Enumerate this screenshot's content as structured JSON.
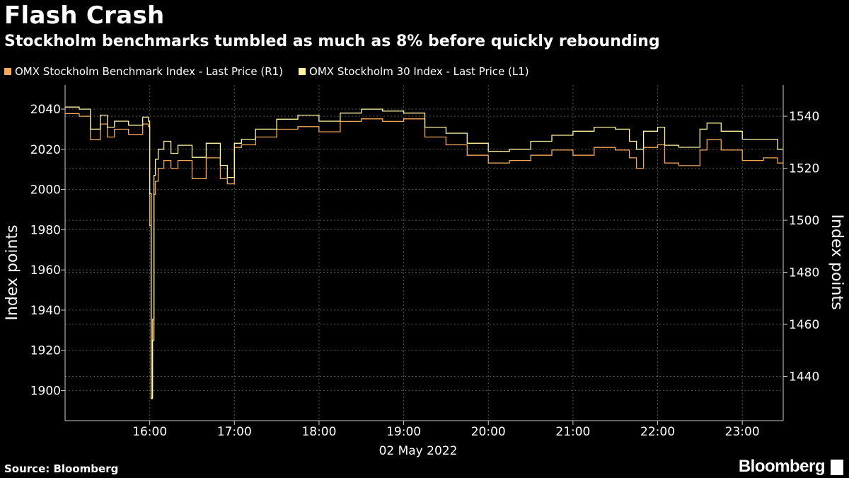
{
  "header": {
    "title": "Flash Crash",
    "subtitle": "Stockholm benchmarks tumbled as much as 8% before quickly rebounding"
  },
  "footer": {
    "source": "Source: Bloomberg",
    "brand": "Bloomberg"
  },
  "colors": {
    "background": "#000000",
    "benchmark": "#f5a85a",
    "omx30": "#fff3a0",
    "grid": "#555555"
  },
  "chart_data": {
    "type": "line",
    "legend_position": "top-left",
    "grid": true,
    "xlabel": "02 May 2022",
    "x_ticks": [
      "16:00",
      "17:00",
      "18:00",
      "19:00",
      "20:00",
      "21:00",
      "22:00",
      "23:00"
    ],
    "xlim": [
      "15:00",
      "23:29"
    ],
    "left_axis": {
      "label": "Index points",
      "ylim": [
        1885,
        2052
      ],
      "ticks": [
        1900,
        1920,
        1940,
        1960,
        1980,
        2000,
        2020,
        2040
      ]
    },
    "right_axis": {
      "label": "Index points",
      "ylim": [
        1423,
        1552
      ],
      "ticks": [
        1440,
        1460,
        1480,
        1500,
        1520,
        1540
      ]
    },
    "series": [
      {
        "name": "OMX Stockholm Benchmark Index - Last Price (R1)",
        "axis": "right",
        "x": [
          "15:00",
          "15:10",
          "15:18",
          "15:25",
          "15:30",
          "15:35",
          "15:45",
          "15:55",
          "15:59",
          "16:00",
          "16:01",
          "16:02",
          "16:03",
          "16:04",
          "16:06",
          "16:10",
          "16:15",
          "16:20",
          "16:30",
          "16:40",
          "16:50",
          "16:55",
          "17:00",
          "17:05",
          "17:15",
          "17:30",
          "17:45",
          "18:00",
          "18:15",
          "18:30",
          "18:45",
          "19:00",
          "19:15",
          "19:30",
          "19:45",
          "20:00",
          "20:15",
          "20:30",
          "20:45",
          "21:00",
          "21:15",
          "21:30",
          "21:40",
          "21:45",
          "21:50",
          "22:00",
          "22:05",
          "22:15",
          "22:30",
          "22:35",
          "22:45",
          "23:00",
          "23:15",
          "23:25",
          "23:29"
        ],
        "y": [
          1541,
          1540,
          1531,
          1537,
          1532,
          1535,
          1533,
          1537,
          1536,
          1498,
          1432,
          1462,
          1510,
          1515,
          1520,
          1523,
          1520,
          1523,
          1516,
          1524,
          1516,
          1514,
          1528,
          1529,
          1532,
          1535,
          1536,
          1534,
          1538,
          1539,
          1538,
          1539,
          1532,
          1529,
          1525,
          1522,
          1523,
          1525,
          1527,
          1525,
          1528,
          1527,
          1524,
          1520,
          1528,
          1529,
          1522,
          1521,
          1527,
          1531,
          1527,
          1523,
          1524,
          1522,
          1522
        ]
      },
      {
        "name": "OMX Stockholm 30 Index - Last Price (L1)",
        "axis": "left",
        "x": [
          "15:00",
          "15:10",
          "15:18",
          "15:25",
          "15:30",
          "15:35",
          "15:45",
          "15:55",
          "15:59",
          "16:00",
          "16:01",
          "16:02",
          "16:03",
          "16:04",
          "16:06",
          "16:10",
          "16:15",
          "16:20",
          "16:30",
          "16:40",
          "16:50",
          "16:55",
          "17:00",
          "17:05",
          "17:15",
          "17:30",
          "17:45",
          "18:00",
          "18:15",
          "18:30",
          "18:45",
          "19:00",
          "19:15",
          "19:30",
          "19:45",
          "20:00",
          "20:15",
          "20:30",
          "20:45",
          "21:00",
          "21:15",
          "21:30",
          "21:40",
          "21:45",
          "21:50",
          "22:00",
          "22:05",
          "22:15",
          "22:30",
          "22:35",
          "22:45",
          "23:00",
          "23:15",
          "23:25",
          "23:29"
        ],
        "y": [
          2041,
          2040,
          2030,
          2037,
          2031,
          2034,
          2032,
          2036,
          2034,
          1998,
          1896,
          1925,
          2007,
          2015,
          2020,
          2024,
          2018,
          2022,
          2016,
          2023,
          2012,
          2006,
          2023,
          2025,
          2030,
          2035,
          2037,
          2034,
          2038,
          2040,
          2039,
          2038,
          2031,
          2028,
          2023,
          2019,
          2020,
          2024,
          2027,
          2029,
          2031,
          2030,
          2024,
          2020,
          2029,
          2031,
          2022,
          2021,
          2030,
          2033,
          2029,
          2025,
          2025,
          2020,
          2020
        ]
      }
    ]
  }
}
